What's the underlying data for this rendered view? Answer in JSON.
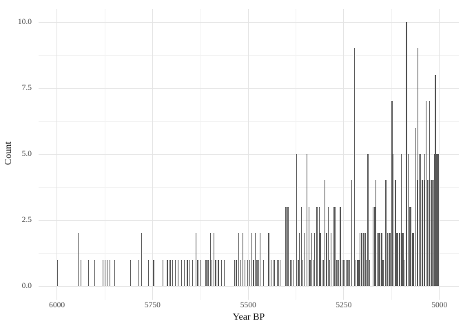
{
  "chart_data": {
    "type": "bar",
    "title": "",
    "xlabel": "Year BP",
    "ylabel": "Count",
    "x_axis_reversed": true,
    "xlim": [
      6048,
      4949
    ],
    "ylim": [
      0,
      10.5
    ],
    "grid": true,
    "legend": "none",
    "x_ticks": [
      6000,
      5750,
      5500,
      5250,
      5000
    ],
    "x_tick_labels": [
      "6000",
      "5750",
      "5500",
      "5250",
      "5000"
    ],
    "x_minor_ticks": [
      5875,
      5625,
      5375,
      5125
    ],
    "y_ticks": [
      0,
      2.5,
      5,
      7.5,
      10
    ],
    "y_tick_labels": [
      "0.0",
      "2.5",
      "5.0",
      "7.5",
      "10.0"
    ],
    "y_minor_ticks": [
      1.25,
      3.75,
      6.25,
      8.75
    ],
    "bar_color": "#595959",
    "grid_major_color": "#e4e4e4",
    "grid_minor_color": "#f2f2f2",
    "bars": [
      [
        5999,
        1
      ],
      [
        5944,
        2
      ],
      [
        5937,
        1
      ],
      [
        5917,
        1
      ],
      [
        5901,
        1
      ],
      [
        5880,
        1
      ],
      [
        5874,
        1
      ],
      [
        5869,
        1
      ],
      [
        5862,
        1
      ],
      [
        5849,
        1
      ],
      [
        5808,
        1
      ],
      [
        5786,
        1
      ],
      [
        5779,
        2
      ],
      [
        5761,
        1
      ],
      [
        5747,
        1
      ],
      [
        5723,
        1
      ],
      [
        5711,
        1
      ],
      [
        5704,
        1
      ],
      [
        5697,
        1
      ],
      [
        5691,
        1
      ],
      [
        5683,
        1
      ],
      [
        5674,
        1
      ],
      [
        5667,
        1
      ],
      [
        5659,
        1
      ],
      [
        5652,
        1
      ],
      [
        5645,
        1
      ],
      [
        5636,
        2
      ],
      [
        5632,
        1
      ],
      [
        5624,
        1
      ],
      [
        5610,
        1
      ],
      [
        5605,
        1
      ],
      [
        5599,
        2
      ],
      [
        5595,
        1
      ],
      [
        5590,
        2
      ],
      [
        5585,
        1
      ],
      [
        5578,
        1
      ],
      [
        5570,
        1
      ],
      [
        5563,
        1
      ],
      [
        5536,
        1
      ],
      [
        5531,
        1
      ],
      [
        5525,
        2
      ],
      [
        5519,
        1
      ],
      [
        5514,
        2
      ],
      [
        5508,
        1
      ],
      [
        5501,
        1
      ],
      [
        5496,
        1
      ],
      [
        5490,
        2
      ],
      [
        5486,
        1
      ],
      [
        5482,
        2
      ],
      [
        5477,
        1
      ],
      [
        5472,
        1
      ],
      [
        5469,
        2
      ],
      [
        5460,
        1
      ],
      [
        5446,
        2
      ],
      [
        5440,
        1
      ],
      [
        5432,
        1
      ],
      [
        5424,
        1
      ],
      [
        5420,
        1
      ],
      [
        5417,
        1
      ],
      [
        5401,
        3
      ],
      [
        5396,
        3
      ],
      [
        5390,
        1
      ],
      [
        5386,
        1
      ],
      [
        5382,
        1
      ],
      [
        5373,
        5
      ],
      [
        5369,
        1
      ],
      [
        5366,
        2
      ],
      [
        5361,
        3
      ],
      [
        5357,
        1
      ],
      [
        5353,
        2
      ],
      [
        5346,
        5
      ],
      [
        5341,
        3
      ],
      [
        5338,
        1
      ],
      [
        5334,
        2
      ],
      [
        5330,
        1
      ],
      [
        5327,
        2
      ],
      [
        5320,
        3
      ],
      [
        5314,
        3
      ],
      [
        5311,
        2
      ],
      [
        5307,
        1
      ],
      [
        5303,
        1
      ],
      [
        5300,
        4
      ],
      [
        5295,
        2
      ],
      [
        5290,
        3
      ],
      [
        5287,
        1
      ],
      [
        5283,
        2
      ],
      [
        5275,
        3
      ],
      [
        5272,
        3
      ],
      [
        5268,
        1
      ],
      [
        5264,
        1
      ],
      [
        5259,
        3
      ],
      [
        5255,
        1
      ],
      [
        5251,
        1
      ],
      [
        5247,
        1
      ],
      [
        5243,
        1
      ],
      [
        5239,
        1
      ],
      [
        5235,
        1
      ],
      [
        5229,
        4
      ],
      [
        5222,
        9
      ],
      [
        5218,
        1
      ],
      [
        5214,
        1
      ],
      [
        5210,
        1
      ],
      [
        5207,
        2
      ],
      [
        5203,
        2
      ],
      [
        5199,
        2
      ],
      [
        5194,
        2
      ],
      [
        5191,
        1
      ],
      [
        5187,
        5
      ],
      [
        5182,
        1
      ],
      [
        5173,
        3
      ],
      [
        5169,
        3
      ],
      [
        5166,
        4
      ],
      [
        5162,
        2
      ],
      [
        5158,
        2
      ],
      [
        5155,
        2
      ],
      [
        5151,
        2
      ],
      [
        5147,
        1
      ],
      [
        5140,
        4
      ],
      [
        5136,
        2
      ],
      [
        5132,
        2
      ],
      [
        5129,
        2
      ],
      [
        5124,
        7
      ],
      [
        5121,
        5
      ],
      [
        5115,
        4
      ],
      [
        5111,
        2
      ],
      [
        5108,
        2
      ],
      [
        5104,
        2
      ],
      [
        5100,
        5
      ],
      [
        5097,
        2
      ],
      [
        5094,
        2
      ],
      [
        5092,
        1
      ],
      [
        5086,
        10
      ],
      [
        5081,
        5
      ],
      [
        5077,
        3
      ],
      [
        5074,
        3
      ],
      [
        5071,
        2
      ],
      [
        5068,
        2
      ],
      [
        5061,
        6
      ],
      [
        5058,
        4
      ],
      [
        5056,
        9
      ],
      [
        5053,
        5
      ],
      [
        5049,
        5
      ],
      [
        5046,
        4
      ],
      [
        5043,
        4
      ],
      [
        5040,
        4
      ],
      [
        5038,
        5
      ],
      [
        5034,
        7
      ],
      [
        5031,
        4
      ],
      [
        5028,
        4
      ],
      [
        5025,
        7
      ],
      [
        5021,
        4
      ],
      [
        5018,
        4
      ],
      [
        5015,
        4
      ],
      [
        5012,
        5
      ],
      [
        5010,
        8
      ],
      [
        5008,
        5
      ],
      [
        5006,
        5
      ],
      [
        5004,
        5
      ],
      [
        5003,
        5
      ]
    ]
  }
}
